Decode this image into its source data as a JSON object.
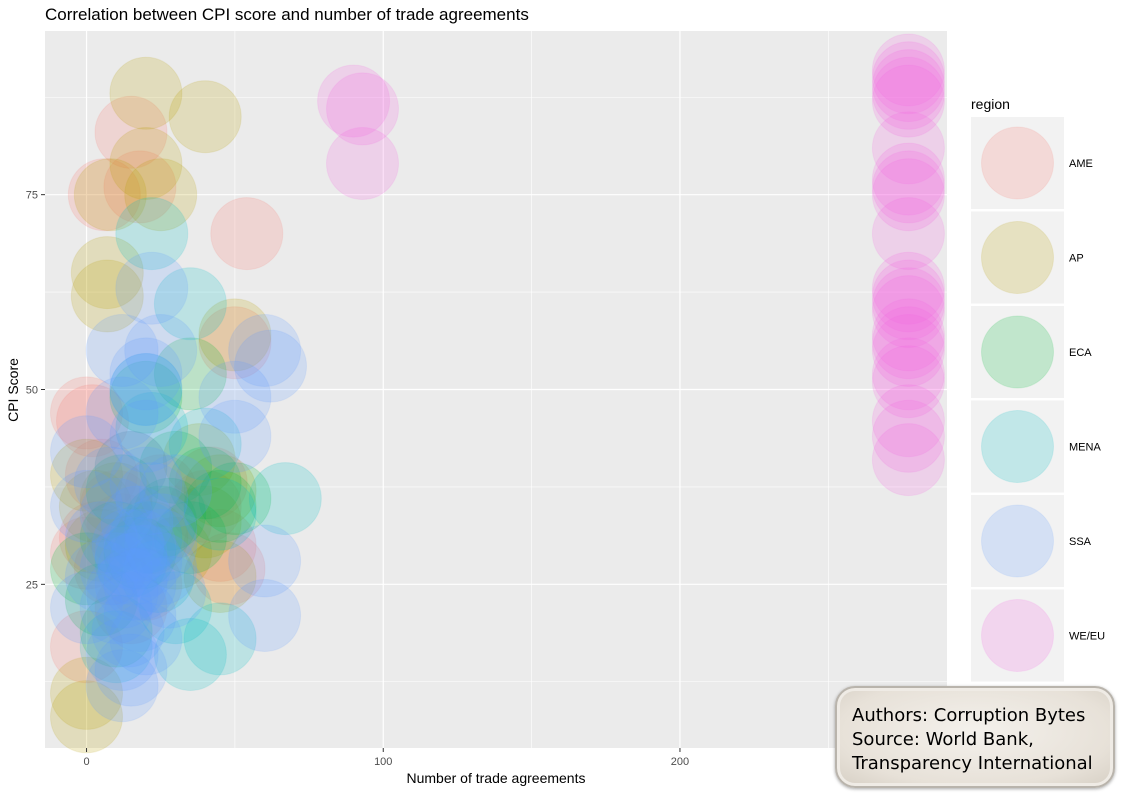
{
  "chart_data": {
    "type": "scatter",
    "title": "Correlation between CPI score and number of trade agreements",
    "xlabel": "Number of trade agreements",
    "ylabel": "CPI Score",
    "xlim": [
      -14,
      290
    ],
    "ylim": [
      4,
      96
    ],
    "x_ticks": [
      0,
      100,
      200
    ],
    "y_ticks": [
      25,
      50,
      75
    ],
    "grid": true,
    "legend": {
      "title": "region",
      "placement": "right",
      "entries": [
        {
          "label": "AME",
          "color": "#F8766D"
        },
        {
          "label": "AP",
          "color": "#B79F00"
        },
        {
          "label": "ECA",
          "color": "#00BA38"
        },
        {
          "label": "MENA",
          "color": "#00BFC4"
        },
        {
          "label": "SSA",
          "color": "#619CFF"
        },
        {
          "label": "WE/EU",
          "color": "#F564E3"
        }
      ]
    },
    "series": [
      {
        "name": "AME",
        "color": "#F8766D",
        "points": [
          [
            15,
            83
          ],
          [
            6,
            75
          ],
          [
            18,
            76
          ],
          [
            54,
            70
          ],
          [
            0,
            47
          ],
          [
            2,
            46
          ],
          [
            50,
            56
          ],
          [
            5,
            39
          ],
          [
            10,
            35
          ],
          [
            12,
            32
          ],
          [
            0,
            29
          ],
          [
            40,
            35
          ],
          [
            45,
            30
          ],
          [
            8,
            27
          ],
          [
            0,
            17
          ],
          [
            20,
            25
          ],
          [
            25,
            37
          ],
          [
            48,
            27
          ],
          [
            15,
            22
          ],
          [
            30,
            33
          ],
          [
            42,
            38
          ],
          [
            3,
            31
          ]
        ]
      },
      {
        "name": "AP",
        "color": "#B79F00",
        "points": [
          [
            20,
            88
          ],
          [
            40,
            85
          ],
          [
            20,
            79
          ],
          [
            8,
            75
          ],
          [
            25,
            75
          ],
          [
            7,
            65
          ],
          [
            7,
            62
          ],
          [
            50,
            57
          ],
          [
            0,
            39
          ],
          [
            3,
            35
          ],
          [
            10,
            36
          ],
          [
            38,
            41
          ],
          [
            45,
            37
          ],
          [
            40,
            33
          ],
          [
            5,
            30
          ],
          [
            45,
            26
          ],
          [
            0,
            11
          ],
          [
            0,
            8
          ],
          [
            22,
            31
          ],
          [
            30,
            29
          ],
          [
            15,
            40
          ]
        ]
      },
      {
        "name": "ECA",
        "color": "#00BA38",
        "points": [
          [
            35,
            52
          ],
          [
            20,
            49
          ],
          [
            30,
            40
          ],
          [
            40,
            38
          ],
          [
            45,
            35
          ],
          [
            50,
            36
          ],
          [
            25,
            33
          ],
          [
            10,
            31
          ],
          [
            35,
            31
          ],
          [
            18,
            29
          ],
          [
            0,
            27
          ],
          [
            5,
            23
          ],
          [
            10,
            19
          ],
          [
            28,
            34
          ],
          [
            12,
            37
          ]
        ]
      },
      {
        "name": "MENA",
        "color": "#00BFC4",
        "points": [
          [
            22,
            70
          ],
          [
            35,
            61
          ],
          [
            20,
            50
          ],
          [
            22,
            45
          ],
          [
            40,
            43
          ],
          [
            67,
            36
          ],
          [
            45,
            34
          ],
          [
            20,
            31
          ],
          [
            15,
            28
          ],
          [
            30,
            22
          ],
          [
            45,
            18
          ],
          [
            35,
            16
          ],
          [
            10,
            17
          ],
          [
            24,
            26
          ]
        ]
      },
      {
        "name": "SSA",
        "color": "#619CFF",
        "points": [
          [
            22,
            63
          ],
          [
            12,
            55
          ],
          [
            25,
            55
          ],
          [
            60,
            55
          ],
          [
            62,
            53
          ],
          [
            20,
            52
          ],
          [
            20,
            50
          ],
          [
            50,
            49
          ],
          [
            12,
            47
          ],
          [
            20,
            44
          ],
          [
            50,
            44
          ],
          [
            0,
            42
          ],
          [
            15,
            40
          ],
          [
            20,
            38
          ],
          [
            30,
            37
          ],
          [
            0,
            35
          ],
          [
            10,
            34
          ],
          [
            17,
            33
          ],
          [
            25,
            32
          ],
          [
            5,
            31
          ],
          [
            18,
            30
          ],
          [
            15,
            29
          ],
          [
            20,
            28
          ],
          [
            60,
            28
          ],
          [
            10,
            27
          ],
          [
            25,
            27
          ],
          [
            5,
            26
          ],
          [
            15,
            25
          ],
          [
            28,
            24
          ],
          [
            0,
            22
          ],
          [
            10,
            22
          ],
          [
            18,
            21
          ],
          [
            60,
            21
          ],
          [
            14,
            19
          ],
          [
            20,
            18
          ],
          [
            12,
            16
          ],
          [
            15,
            14
          ],
          [
            12,
            12
          ],
          [
            22,
            36
          ],
          [
            8,
            38
          ],
          [
            14,
            30
          ],
          [
            16,
            27
          ],
          [
            18,
            25
          ],
          [
            12,
            24
          ],
          [
            25,
            30
          ]
        ]
      },
      {
        "name": "WE/EU",
        "color": "#F564E3",
        "points": [
          [
            90,
            87
          ],
          [
            93,
            86
          ],
          [
            93,
            79
          ],
          [
            277,
            91
          ],
          [
            277,
            90
          ],
          [
            277,
            89
          ],
          [
            277,
            88
          ],
          [
            277,
            87
          ],
          [
            277,
            81
          ],
          [
            277,
            77
          ],
          [
            277,
            76
          ],
          [
            277,
            75
          ],
          [
            277,
            70
          ],
          [
            277,
            63
          ],
          [
            277,
            62
          ],
          [
            277,
            61
          ],
          [
            277,
            60
          ],
          [
            277,
            57
          ],
          [
            277,
            56
          ],
          [
            277,
            55
          ],
          [
            277,
            52
          ],
          [
            277,
            51
          ],
          [
            277,
            46
          ],
          [
            277,
            44
          ],
          [
            277,
            41
          ]
        ]
      }
    ]
  },
  "attribution": {
    "line1": "Authors: Corruption Bytes",
    "line2": "Source: World Bank,",
    "line3": "Transparency International"
  }
}
